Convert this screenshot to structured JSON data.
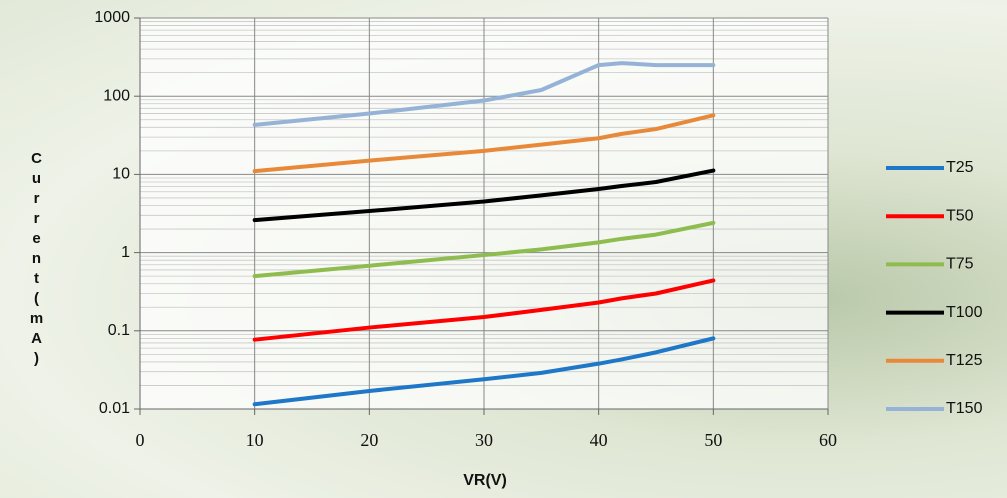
{
  "chart_data": {
    "type": "line",
    "x_label": "VR(V)",
    "y_label": "Current(mA)",
    "x": [
      10,
      20,
      30,
      35,
      40,
      42,
      45,
      50
    ],
    "series": [
      {
        "name": "T25",
        "color": "#1f77c8",
        "values": [
          0.0115,
          0.017,
          0.024,
          0.029,
          0.038,
          0.043,
          0.053,
          0.08
        ]
      },
      {
        "name": "T50",
        "color": "#ff0000",
        "values": [
          0.077,
          0.11,
          0.15,
          0.185,
          0.23,
          0.26,
          0.3,
          0.44
        ]
      },
      {
        "name": "T75",
        "color": "#8fbc4f",
        "values": [
          0.5,
          0.68,
          0.93,
          1.1,
          1.35,
          1.5,
          1.7,
          2.4
        ]
      },
      {
        "name": "T100",
        "color": "#000000",
        "values": [
          2.6,
          3.4,
          4.5,
          5.4,
          6.5,
          7.1,
          8,
          11.2
        ]
      },
      {
        "name": "T125",
        "color": "#e8893a",
        "values": [
          11,
          15,
          20,
          24,
          29,
          33,
          38,
          57
        ]
      },
      {
        "name": "T150",
        "color": "#95b3d7",
        "values": [
          43,
          60,
          88,
          120,
          250,
          265,
          250,
          250
        ]
      }
    ],
    "xlim": [
      0,
      60
    ],
    "xticks": [
      0,
      10,
      20,
      30,
      40,
      50,
      60
    ],
    "ylim": [
      0.01,
      1000
    ],
    "yticks": [
      0.01,
      0.1,
      1,
      10,
      100,
      1000
    ],
    "y_log": true,
    "grid": true,
    "legend": "right"
  }
}
